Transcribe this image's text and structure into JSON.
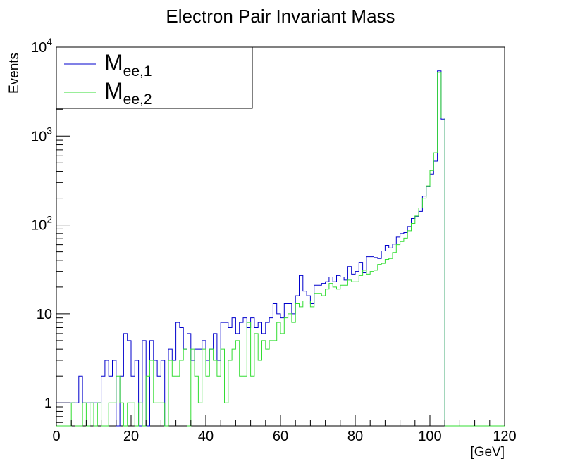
{
  "chart_data": {
    "type": "histogram",
    "title": "Electron Pair Invariant Mass",
    "xlabel": "[GeV]",
    "ylabel": "Events",
    "xlim": [
      0,
      120
    ],
    "ylim": [
      0.55,
      10000
    ],
    "yscale": "log",
    "bin_width": 1,
    "x_ticks": [
      "0",
      "20",
      "40",
      "60",
      "80",
      "100",
      "120"
    ],
    "y_ticks": [
      {
        "base": "1",
        "exp": ""
      },
      {
        "base": "10",
        "exp": ""
      },
      {
        "base": "10",
        "exp": "2"
      },
      {
        "base": "10",
        "exp": "3"
      },
      {
        "base": "10",
        "exp": "4"
      }
    ],
    "legend_position": "top-left",
    "series": [
      {
        "name": "M",
        "subscript": "ee,1",
        "color": "#0000cc",
        "values": [
          1,
          1,
          1,
          1,
          1,
          1,
          2,
          1,
          1,
          1,
          1,
          1,
          2,
          3,
          2,
          3,
          0,
          2,
          6,
          5,
          2,
          3,
          0,
          5,
          0,
          5,
          3,
          2,
          3,
          0,
          4,
          3,
          8,
          7,
          4,
          6,
          3,
          4,
          4,
          5,
          3,
          4,
          6,
          3,
          8,
          8,
          7,
          9,
          6,
          8,
          9,
          7,
          9,
          7,
          8,
          6,
          8,
          9,
          13,
          10,
          9,
          13,
          13,
          10,
          16,
          27,
          18,
          16,
          13,
          21,
          21,
          22,
          23,
          26,
          23,
          27,
          26,
          24,
          34,
          28,
          30,
          38,
          29,
          44,
          44,
          43,
          42,
          51,
          59,
          55,
          61,
          73,
          80,
          82,
          96,
          118,
          125,
          142,
          211,
          270,
          374,
          522,
          5400,
          1550,
          0,
          0,
          0,
          0,
          0,
          0,
          0,
          0,
          0,
          0,
          0,
          0,
          0,
          0,
          0,
          0
        ]
      },
      {
        "name": "M",
        "subscript": "ee,2",
        "color": "#33dd33",
        "values": [
          0,
          0,
          0,
          0,
          1,
          0,
          0,
          1,
          0,
          1,
          0,
          1,
          0,
          0,
          1,
          1,
          2,
          1,
          0,
          1,
          1,
          0,
          1,
          0,
          2,
          3,
          1,
          1,
          1,
          0,
          3,
          2,
          2,
          3,
          4,
          0,
          4,
          2,
          1,
          4,
          2,
          4,
          3,
          2,
          4,
          1,
          3,
          4,
          5,
          2,
          2,
          8,
          2,
          6,
          3,
          5,
          4,
          5,
          5,
          8,
          6,
          9,
          10,
          8,
          13,
          12,
          14,
          14,
          12,
          17,
          17,
          16,
          19,
          22,
          20,
          19,
          21,
          21,
          24,
          23,
          23,
          27,
          31,
          28,
          30,
          31,
          36,
          37,
          41,
          42,
          49,
          60,
          65,
          71,
          86,
          104,
          126,
          155,
          200,
          275,
          410,
          648,
          5200,
          1600,
          0,
          0,
          0,
          0,
          0,
          0,
          0,
          0,
          0,
          0,
          0,
          0,
          0,
          0,
          0,
          0
        ]
      }
    ]
  }
}
